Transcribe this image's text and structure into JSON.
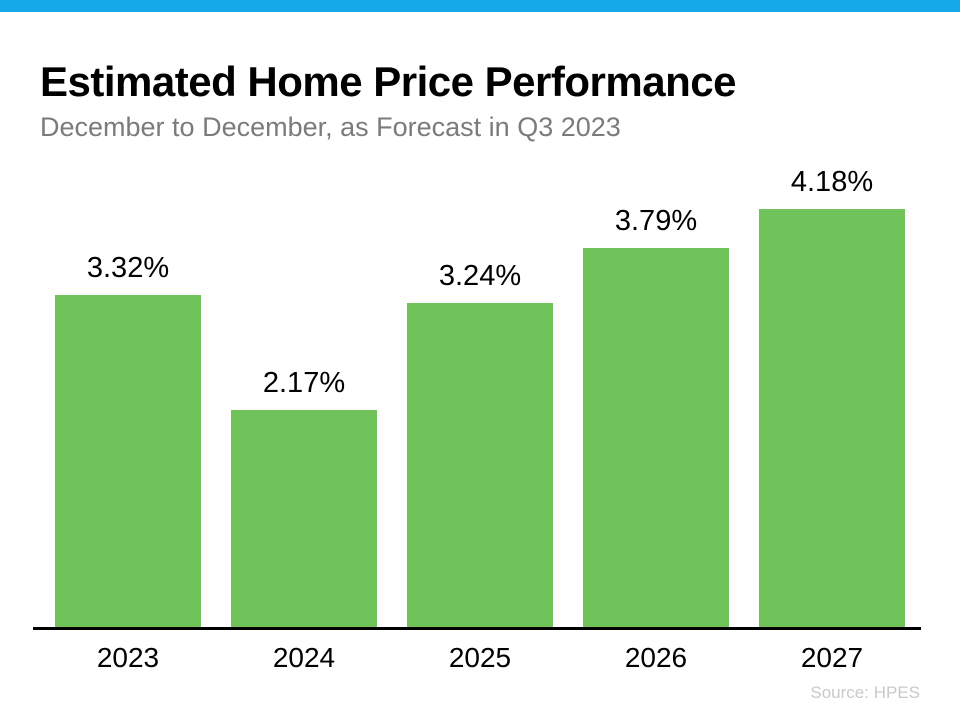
{
  "header": {
    "title": "Estimated Home Price Performance",
    "subtitle": "December to December, as Forecast in Q3 2023"
  },
  "footer": {
    "source": "Source: HPES"
  },
  "colors": {
    "accent_bar_blue": "#16A9E9",
    "bar_green": "#70C25A",
    "subtitle_gray": "#7b7b7b",
    "source_gray": "#c9c9c9",
    "axis_black": "#000000"
  },
  "chart_data": {
    "type": "bar",
    "title": "Estimated Home Price Performance",
    "subtitle": "December to December, as Forecast in Q3 2023",
    "categories": [
      "2023",
      "2024",
      "2025",
      "2026",
      "2027"
    ],
    "values": [
      3.32,
      2.17,
      3.24,
      3.79,
      4.18
    ],
    "data_labels": [
      "3.32%",
      "2.17%",
      "3.24%",
      "3.79%",
      "4.18%"
    ],
    "xlabel": "",
    "ylabel": "",
    "ylim": [
      0,
      4.6
    ],
    "grid": false,
    "legend": false,
    "bar_color": "#70C25A",
    "source": "Source: HPES"
  }
}
